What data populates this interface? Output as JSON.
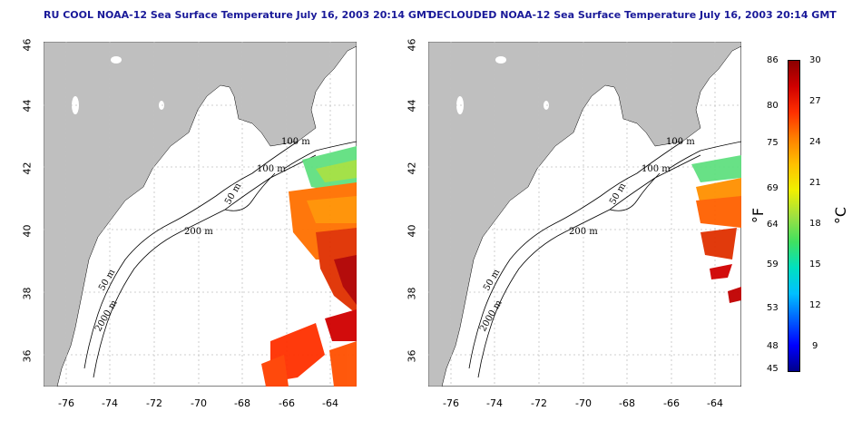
{
  "panels": [
    {
      "title": "RU COOL NOAA-12 Sea Surface Temperature July 16, 2003 20:14 GMT"
    },
    {
      "title": "DECLOUDED NOAA-12 Sea Surface Temperature July 16, 2003 20:14 GMT"
    }
  ],
  "axes": {
    "x_ticks": [
      "-76",
      "-74",
      "-72",
      "-70",
      "-68",
      "-66",
      "-64"
    ],
    "y_ticks": [
      "46",
      "44",
      "42",
      "40",
      "38",
      "36"
    ]
  },
  "contours": {
    "labels": [
      "100 m",
      "100 m",
      "50 m",
      "200 m",
      "50 m",
      "2000 m"
    ]
  },
  "colorbar": {
    "fahrenheit_ticks": [
      "86",
      "80",
      "75",
      "69",
      "64",
      "59",
      "53",
      "48",
      "45"
    ],
    "celsius_ticks": [
      "30",
      "27",
      "24",
      "21",
      "18",
      "15",
      "12",
      "9"
    ],
    "unit_f": "°F",
    "unit_c": "°C",
    "colors": [
      "#00008b",
      "#0000ff",
      "#0060ff",
      "#00c0ff",
      "#00e0c0",
      "#40e060",
      "#a0e040",
      "#f0f000",
      "#ffc000",
      "#ff8000",
      "#ff3000",
      "#d00000",
      "#8b0000"
    ]
  }
}
